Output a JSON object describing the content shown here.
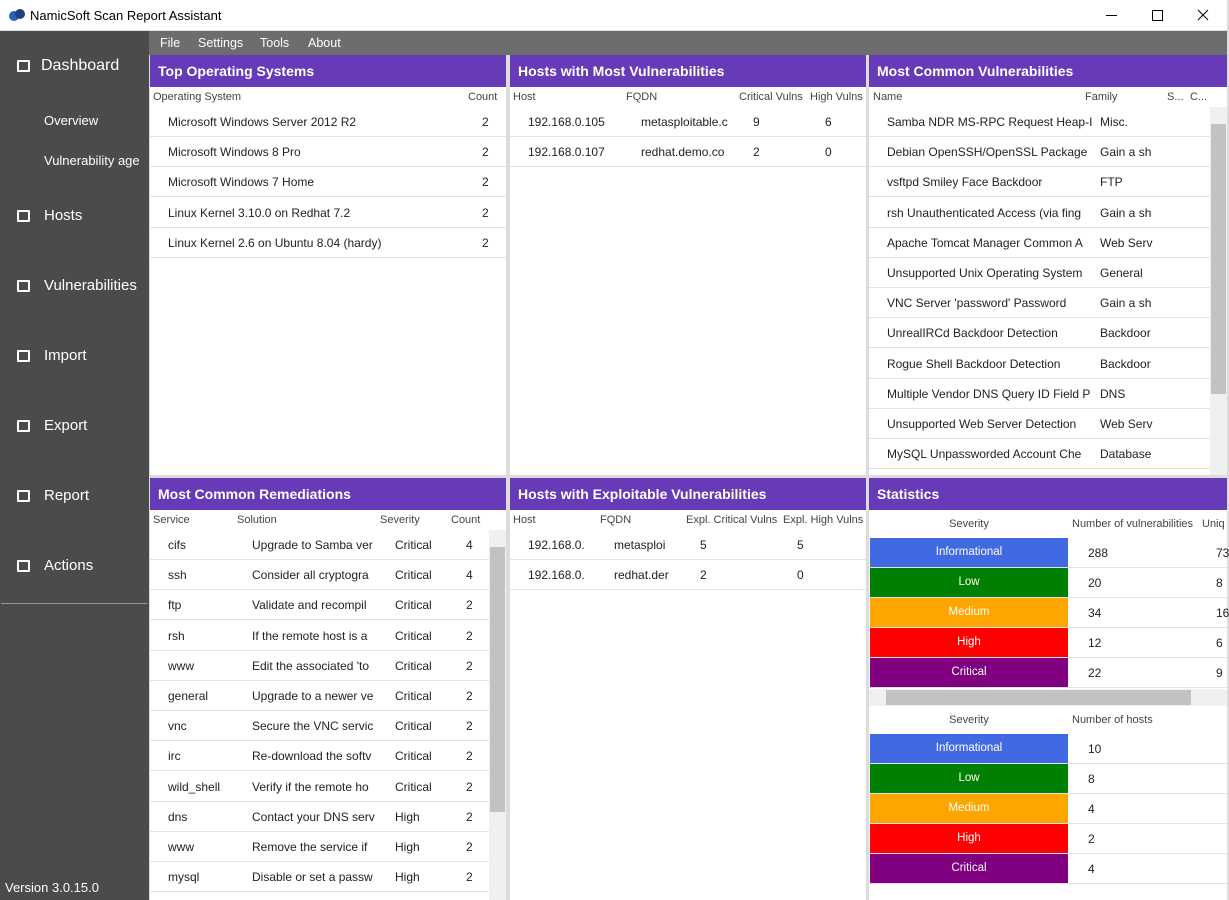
{
  "window": {
    "title": "NamicSoft Scan Report Assistant"
  },
  "sidebar": {
    "items": [
      "Dashboard",
      "Overview",
      "Vulnerability age",
      "Hosts",
      "Vulnerabilities",
      "Import",
      "Export",
      "Report",
      "Actions"
    ],
    "version": "Version 3.0.15.0"
  },
  "menu": [
    "File",
    "Settings",
    "Tools",
    "About"
  ],
  "panels": [
    {
      "title": "Top Operating Systems",
      "columns": [
        "Operating System",
        "Count"
      ],
      "rows": [
        [
          "Microsoft Windows Server 2012 R2",
          2
        ],
        [
          "Microsoft Windows 8 Pro",
          2
        ],
        [
          "Microsoft Windows 7 Home",
          2
        ],
        [
          "Linux Kernel 3.10.0 on Redhat 7.2",
          2
        ],
        [
          "Linux Kernel 2.6 on Ubuntu 8.04 (hardy)",
          2
        ]
      ]
    },
    {
      "title": "Hosts with Most Vulnerabilities",
      "columns": [
        "Host",
        "FQDN",
        "Critical Vulns",
        "High Vulns"
      ],
      "rows": [
        [
          "192.168.0.105",
          "metasploitable.c",
          9,
          6
        ],
        [
          "192.168.0.107",
          "redhat.demo.co",
          2,
          0
        ]
      ]
    },
    {
      "title": "Most Common Vulnerabilities",
      "columns": [
        "Name",
        "Family",
        "S...",
        "C..."
      ],
      "rows": [
        [
          "Samba NDR MS-RPC Request Heap-I",
          "Misc."
        ],
        [
          "Debian OpenSSH/OpenSSL Package",
          "Gain a sh"
        ],
        [
          "vsftpd Smiley Face Backdoor",
          "FTP"
        ],
        [
          "rsh Unauthenticated Access (via fing",
          "Gain a sh"
        ],
        [
          "Apache Tomcat Manager Common A",
          "Web Serv"
        ],
        [
          "Unsupported Unix Operating System",
          "General"
        ],
        [
          "VNC Server 'password' Password",
          "Gain a sh"
        ],
        [
          "UnrealIRCd Backdoor Detection",
          "Backdoor"
        ],
        [
          "Rogue Shell Backdoor Detection",
          "Backdoor"
        ],
        [
          "Multiple Vendor DNS Query ID Field P",
          "DNS"
        ],
        [
          "Unsupported Web Server Detection",
          "Web Serv"
        ],
        [
          "MySQL Unpassworded Account Che",
          "Database"
        ]
      ]
    },
    {
      "title": "Most Common Remediations",
      "columns": [
        "Service",
        "Solution",
        "Severity",
        "Count"
      ],
      "rows": [
        [
          "cifs",
          "Upgrade to Samba ver",
          "Critical",
          4
        ],
        [
          "ssh",
          "Consider all cryptogra",
          "Critical",
          4
        ],
        [
          "ftp",
          "Validate and recompil",
          "Critical",
          2
        ],
        [
          "rsh",
          "If the remote host is a",
          "Critical",
          2
        ],
        [
          "www",
          "Edit the associated 'to",
          "Critical",
          2
        ],
        [
          "general",
          "Upgrade to a newer ve",
          "Critical",
          2
        ],
        [
          "vnc",
          "Secure the VNC servic",
          "Critical",
          2
        ],
        [
          "irc",
          "Re-download the softv",
          "Critical",
          2
        ],
        [
          "wild_shell",
          "Verify if the remote ho",
          "Critical",
          2
        ],
        [
          "dns",
          "Contact your DNS serv",
          "High",
          2
        ],
        [
          "www",
          "Remove the service if",
          "High",
          2
        ],
        [
          "mysql",
          "Disable or set a passw",
          "High",
          2
        ]
      ]
    },
    {
      "title": "Hosts with Exploitable Vulnerabilities",
      "columns": [
        "Host",
        "FQDN",
        "Expl. Critical Vulns",
        "Expl. High Vulns"
      ],
      "rows": [
        [
          "192.168.0.",
          "metasploi",
          5,
          5
        ],
        [
          "192.168.0.",
          "redhat.der",
          2,
          0
        ]
      ]
    }
  ],
  "statistics": {
    "title": "Statistics",
    "tables": [
      {
        "columns": [
          "Severity",
          "Number of vulnerabilities",
          "Uniq"
        ],
        "rows": [
          {
            "severity": "Informational",
            "color": "#4169e1",
            "values": [
              288,
              73
            ]
          },
          {
            "severity": "Low",
            "color": "#008000",
            "values": [
              20,
              8
            ]
          },
          {
            "severity": "Medium",
            "color": "#ffa500",
            "values": [
              34,
              16
            ]
          },
          {
            "severity": "High",
            "color": "#ff0000",
            "values": [
              12,
              6
            ]
          },
          {
            "severity": "Critical",
            "color": "#800080",
            "values": [
              22,
              9
            ]
          }
        ]
      },
      {
        "columns": [
          "Severity",
          "Number of hosts"
        ],
        "rows": [
          {
            "severity": "Informational",
            "color": "#4169e1",
            "values": [
              10
            ]
          },
          {
            "severity": "Low",
            "color": "#008000",
            "values": [
              8
            ]
          },
          {
            "severity": "Medium",
            "color": "#ffa500",
            "values": [
              4
            ]
          },
          {
            "severity": "High",
            "color": "#ff0000",
            "values": [
              2
            ]
          },
          {
            "severity": "Critical",
            "color": "#800080",
            "values": [
              4
            ]
          }
        ]
      }
    ]
  }
}
